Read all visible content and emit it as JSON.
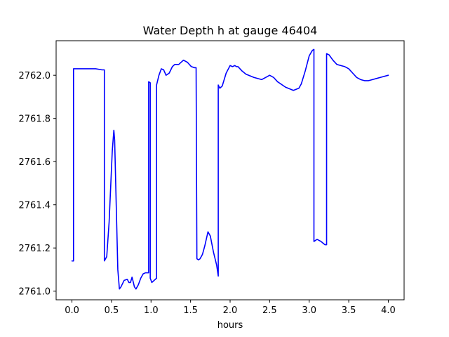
{
  "chart_data": {
    "type": "line",
    "title": "Water Depth h at gauge 46404",
    "xlabel": "hours",
    "ylabel": "",
    "xlim": [
      -0.2,
      4.2
    ],
    "ylim": [
      2760.96,
      2762.16
    ],
    "x_ticks": [
      0.0,
      0.5,
      1.0,
      1.5,
      2.0,
      2.5,
      3.0,
      3.5,
      4.0
    ],
    "x_tick_labels": [
      "0.0",
      "0.5",
      "1.0",
      "1.5",
      "2.0",
      "2.5",
      "3.0",
      "3.5",
      "4.0"
    ],
    "y_ticks": [
      2761.0,
      2761.2,
      2761.4,
      2761.6,
      2761.8,
      2762.0
    ],
    "y_tick_labels": [
      "2761.0",
      "2761.2",
      "2761.4",
      "2761.6",
      "2761.8",
      "2762.0"
    ],
    "grid": false,
    "series": [
      {
        "color": "#0000ff",
        "x": [
          0.0,
          0.02,
          0.02,
          0.1,
          0.2,
          0.3,
          0.38,
          0.41,
          0.41,
          0.44,
          0.47,
          0.51,
          0.53,
          0.54,
          0.56,
          0.58,
          0.6,
          0.62,
          0.66,
          0.7,
          0.72,
          0.74,
          0.76,
          0.79,
          0.81,
          0.84,
          0.87,
          0.9,
          0.93,
          0.97,
          0.97,
          0.99,
          0.99,
          1.01,
          1.04,
          1.07,
          1.07,
          1.1,
          1.13,
          1.16,
          1.19,
          1.23,
          1.27,
          1.3,
          1.35,
          1.41,
          1.46,
          1.51,
          1.55,
          1.57,
          1.58,
          1.6,
          1.62,
          1.65,
          1.68,
          1.72,
          1.75,
          1.79,
          1.83,
          1.85,
          1.85,
          1.87,
          1.9,
          1.95,
          2.0,
          2.03,
          2.06,
          2.08,
          2.1,
          2.15,
          2.2,
          2.3,
          2.4,
          2.45,
          2.5,
          2.55,
          2.6,
          2.7,
          2.8,
          2.87,
          2.9,
          2.95,
          3.0,
          3.04,
          3.06,
          3.06,
          3.1,
          3.15,
          3.2,
          3.22,
          3.22,
          3.25,
          3.3,
          3.35,
          3.4,
          3.45,
          3.5,
          3.55,
          3.6,
          3.65,
          3.7,
          3.75,
          3.8,
          3.85,
          3.9,
          4.0
        ],
        "y": [
          2761.14,
          2761.14,
          2762.03,
          2762.03,
          2762.03,
          2762.03,
          2762.025,
          2762.025,
          2761.14,
          2761.16,
          2761.32,
          2761.65,
          2761.745,
          2761.7,
          2761.4,
          2761.1,
          2761.01,
          2761.02,
          2761.05,
          2761.055,
          2761.04,
          2761.04,
          2761.065,
          2761.02,
          2761.01,
          2761.03,
          2761.06,
          2761.08,
          2761.085,
          2761.085,
          2761.97,
          2761.965,
          2761.06,
          2761.04,
          2761.05,
          2761.06,
          2761.955,
          2762.0,
          2762.03,
          2762.025,
          2762.0,
          2762.01,
          2762.04,
          2762.05,
          2762.05,
          2762.07,
          2762.06,
          2762.04,
          2762.035,
          2762.035,
          2761.15,
          2761.145,
          2761.15,
          2761.17,
          2761.21,
          2761.275,
          2761.255,
          2761.18,
          2761.12,
          2761.07,
          2761.955,
          2761.94,
          2761.95,
          2762.01,
          2762.045,
          2762.04,
          2762.045,
          2762.04,
          2762.04,
          2762.02,
          2762.005,
          2761.99,
          2761.98,
          2761.99,
          2762.0,
          2761.99,
          2761.97,
          2761.945,
          2761.93,
          2761.94,
          2761.96,
          2762.02,
          2762.09,
          2762.115,
          2762.12,
          2761.23,
          2761.24,
          2761.23,
          2761.215,
          2761.215,
          2762.1,
          2762.095,
          2762.07,
          2762.05,
          2762.045,
          2762.04,
          2762.03,
          2762.01,
          2761.99,
          2761.98,
          2761.975,
          2761.975,
          2761.98,
          2761.985,
          2761.99,
          2762.0
        ]
      }
    ]
  }
}
